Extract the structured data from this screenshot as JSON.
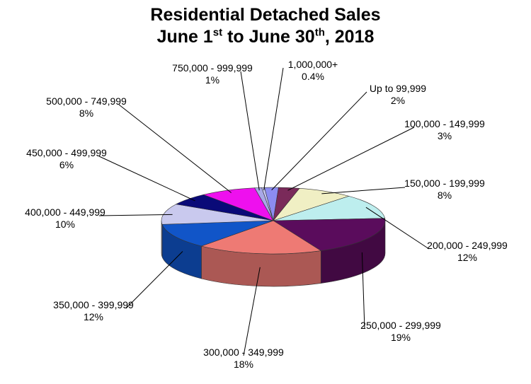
{
  "chart_data": {
    "type": "pie",
    "title_line1": "Residential Detached Sales",
    "title_line2_a": "June 1",
    "title_line2_sup1": "st",
    "title_line2_b": " to June 30",
    "title_line2_sup2": "th",
    "title_line2_c": ", 2018",
    "slices": [
      {
        "label": "1,000,000+",
        "pct_label": "0.4%",
        "value": 0.4,
        "color": "#c9c9f5"
      },
      {
        "label": "Up to 99,999",
        "pct_label": "2%",
        "value": 2,
        "color": "#8c8cf2"
      },
      {
        "label": "100,000 - 149,999",
        "pct_label": "3%",
        "value": 3,
        "color": "#7a2a5a"
      },
      {
        "label": "150,000 - 199,999",
        "pct_label": "8%",
        "value": 8,
        "color": "#f0efc4"
      },
      {
        "label": "200,000 - 249,999",
        "pct_label": "12%",
        "value": 12,
        "color": "#bdeeee"
      },
      {
        "label": "250,000 - 299,999",
        "pct_label": "19%",
        "value": 19,
        "color": "#5a0c5c"
      },
      {
        "label": "300,000 - 349,999",
        "pct_label": "18%",
        "value": 18,
        "color": "#ee7a74"
      },
      {
        "label": "350,000 - 399,999",
        "pct_label": "12%",
        "value": 12,
        "color": "#1155c8"
      },
      {
        "label": "400,000 - 449,999",
        "pct_label": "10%",
        "value": 10,
        "color": "#c9c9ee"
      },
      {
        "label": "450,000 - 499,999",
        "pct_label": "6%",
        "value": 6,
        "color": "#0a0a78"
      },
      {
        "label": "500,000 - 749,999",
        "pct_label": "8%",
        "value": 8,
        "color": "#ee10ee"
      },
      {
        "label": "750,000 - 999,999",
        "pct_label": "1%",
        "value": 1,
        "color": "#a8a8e8"
      }
    ]
  }
}
